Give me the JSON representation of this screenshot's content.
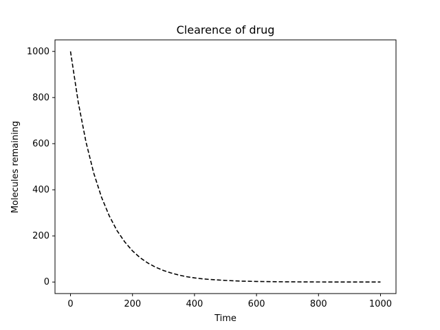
{
  "chart_data": {
    "type": "line",
    "title": "Clearence of drug",
    "xlabel": "Time",
    "ylabel": "Molecules remaining",
    "xlim": [
      -50,
      1050
    ],
    "ylim": [
      -50,
      1050
    ],
    "xticks": [
      0,
      200,
      400,
      600,
      800,
      1000
    ],
    "yticks": [
      0,
      200,
      400,
      600,
      800,
      1000
    ],
    "xtick_labels": [
      "0",
      "200",
      "400",
      "600",
      "800",
      "1000"
    ],
    "ytick_labels": [
      "0",
      "200",
      "400",
      "600",
      "800",
      "1000"
    ],
    "grid": false,
    "series": [
      {
        "color": "#000000",
        "line_style": "dashed",
        "x": [
          0,
          25,
          50,
          75,
          100,
          125,
          150,
          175,
          200,
          225,
          250,
          275,
          300,
          325,
          350,
          375,
          400,
          425,
          450,
          475,
          500,
          550,
          600,
          650,
          700,
          750,
          800,
          850,
          900,
          950,
          1000
        ],
        "y": [
          1000,
          779,
          607,
          472,
          368,
          287,
          223,
          174,
          135,
          105,
          82,
          64,
          50,
          39,
          30,
          23,
          18,
          14,
          11,
          9,
          7,
          4,
          2.5,
          1.5,
          0.9,
          0.6,
          0.3,
          0.2,
          0.1,
          0.1,
          0
        ]
      }
    ]
  }
}
